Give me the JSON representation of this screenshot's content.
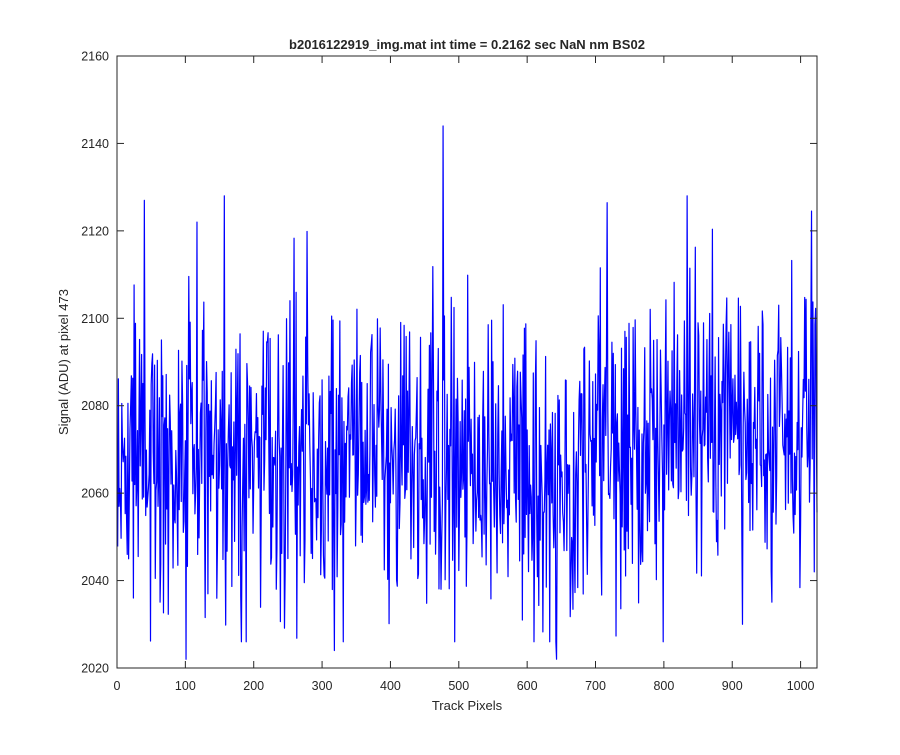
{
  "chart_data": {
    "type": "line",
    "title": "b2016122919_img.mat int time = 0.2162 sec  NaN nm BS02",
    "xlabel": "Track Pixels",
    "ylabel": "Signal (ADU) at pixel 473",
    "xlim": [
      0,
      1024
    ],
    "ylim": [
      2020,
      2160
    ],
    "xticks": [
      0,
      100,
      200,
      300,
      400,
      500,
      600,
      700,
      800,
      900,
      1000
    ],
    "yticks": [
      2020,
      2040,
      2060,
      2080,
      2100,
      2120,
      2140,
      2160
    ],
    "grid": false,
    "series": [
      {
        "color": "#0000ff",
        "x_start": 1,
        "x_step": 1,
        "point_count": 1024,
        "mean": 2070,
        "min": 2022,
        "max": 2144,
        "notable_points": [
          {
            "x": 101,
            "y": 2022
          },
          {
            "x": 117,
            "y": 2122
          },
          {
            "x": 157,
            "y": 2128
          },
          {
            "x": 318,
            "y": 2024
          },
          {
            "x": 477,
            "y": 2144
          },
          {
            "x": 643,
            "y": 2022
          },
          {
            "x": 834,
            "y": 2128
          },
          {
            "x": 915,
            "y": 2030
          },
          {
            "x": 1020,
            "y": 2042
          }
        ]
      }
    ]
  }
}
